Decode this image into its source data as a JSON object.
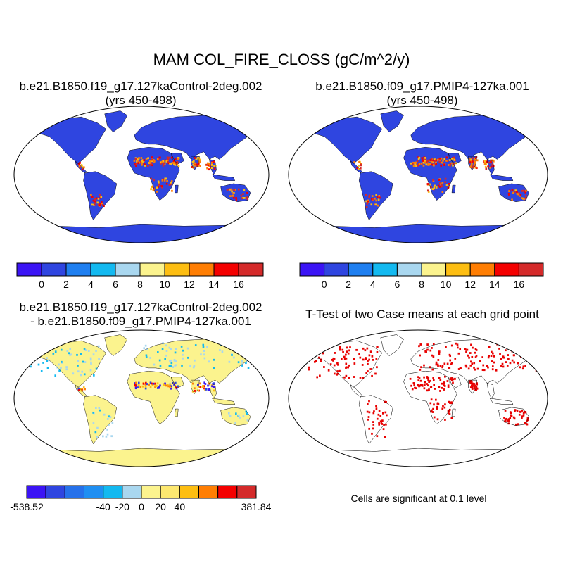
{
  "figure": {
    "title": "MAM COL_FIRE_CLOSS (gC/m^2/y)"
  },
  "panels": {
    "top_left": {
      "title_line1": "b.e21.B1850.f19_g17.127kaControl-2deg.002",
      "title_line2": "(yrs 450-498)",
      "colorbar": {
        "colors": [
          "#3b14f5",
          "#2f45e0",
          "#1f7ff0",
          "#13b9f0",
          "#a9d7ef",
          "#fbf38e",
          "#fdbe12",
          "#ff7e03",
          "#f40000",
          "#d42a2a"
        ],
        "labels": [
          "0",
          "2",
          "4",
          "6",
          "8",
          "10",
          "12",
          "14",
          "16"
        ]
      }
    },
    "top_right": {
      "title_line1": "b.e21.B1850.f09_g17.PMIP4-127ka.001",
      "title_line2": "(yrs 450-498)",
      "colorbar": {
        "colors": [
          "#3b14f5",
          "#2f45e0",
          "#1f7ff0",
          "#13b9f0",
          "#a9d7ef",
          "#fbf38e",
          "#fdbe12",
          "#ff7e03",
          "#f40000",
          "#d42a2a"
        ],
        "labels": [
          "0",
          "2",
          "4",
          "6",
          "8",
          "10",
          "12",
          "14",
          "16"
        ]
      }
    },
    "bottom_left": {
      "title_line1": "b.e21.B1850.f19_g17.127kaControl-2deg.002",
      "title_line2": "- b.e21.B1850.f09_g17.PMIP4-127ka.001",
      "colorbar": {
        "colors": [
          "#3b14f5",
          "#2f45e0",
          "#2671ea",
          "#1f8ff2",
          "#13b9f0",
          "#a9d7ef",
          "#fbf38e",
          "#fde870",
          "#fdbe12",
          "#ff7e03",
          "#f40000",
          "#d42a2a"
        ],
        "labels": [
          "-538.52",
          "-40",
          "-20",
          "0",
          "20",
          "40",
          "381.84"
        ]
      }
    },
    "bottom_right": {
      "title": "T-Test of two Case means at each grid point",
      "note": "Cells are significant at 0.1 level"
    }
  },
  "colors": {
    "ocean": "#ffffff",
    "land_low": "#2f45e0",
    "land_high": "#e01010",
    "diff_neutral": "#fbf38e",
    "diff_light": "#a9d7ef",
    "significant": "#e80000",
    "coastline": "#000000"
  }
}
